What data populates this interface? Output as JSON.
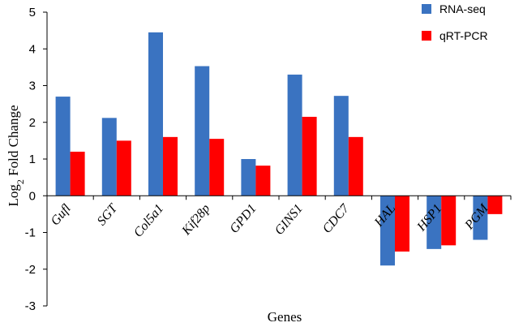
{
  "chart_data": {
    "type": "bar",
    "categories": [
      "Gufl",
      "SGT",
      "Col5a1",
      "Kif28p",
      "GPD1",
      "GINS1",
      "CDC7",
      "HAL",
      "HSP1",
      "PGM"
    ],
    "series": [
      {
        "name": "RNA-seq",
        "color": "#3a73c1",
        "values": [
          2.7,
          2.12,
          4.45,
          3.53,
          1.0,
          3.3,
          2.72,
          -1.9,
          -1.45,
          -1.2
        ]
      },
      {
        "name": "qRT-PCR",
        "color": "#ff0000",
        "values": [
          1.2,
          1.5,
          1.6,
          1.55,
          0.82,
          2.15,
          1.6,
          -1.52,
          -1.35,
          -0.5
        ]
      }
    ],
    "xlabel": "Genes",
    "ylabel_main": "Log",
    "ylabel_sub": "2",
    "ylabel_rest": " Fold Change",
    "ylim": [
      -3,
      5
    ],
    "yticks": [
      "-3",
      "-2",
      "-1",
      "0",
      "1",
      "2",
      "3",
      "4",
      "5"
    ],
    "grid": false,
    "legend_position": "top-right"
  }
}
